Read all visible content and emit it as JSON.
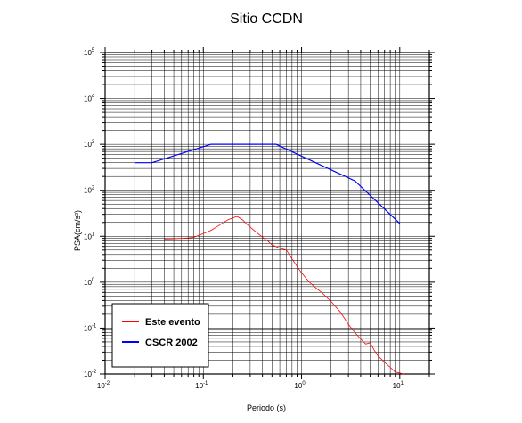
{
  "chart_data": {
    "type": "line",
    "title": "Sitio CCDN",
    "xlabel": "Periodo (s)",
    "ylabel": "PSA(cm/s²)",
    "x_scale": "log",
    "y_scale": "log",
    "xlim": [
      0.01,
      20
    ],
    "ylim": [
      0.01,
      100000
    ],
    "grid": true,
    "legend_position": "bottom-left",
    "x_ticks": [
      {
        "base": "10",
        "exp": "-2",
        "value": 0.01
      },
      {
        "base": "10",
        "exp": "-1",
        "value": 0.1
      },
      {
        "base": "10",
        "exp": "0",
        "value": 1
      },
      {
        "base": "10",
        "exp": "1",
        "value": 10
      }
    ],
    "y_ticks": [
      {
        "base": "10",
        "exp": "-2",
        "value": 0.01
      },
      {
        "base": "10",
        "exp": "-1",
        "value": 0.1
      },
      {
        "base": "10",
        "exp": "0",
        "value": 1
      },
      {
        "base": "10",
        "exp": "1",
        "value": 10
      },
      {
        "base": "10",
        "exp": "2",
        "value": 100
      },
      {
        "base": "10",
        "exp": "3",
        "value": 1000
      },
      {
        "base": "10",
        "exp": "4",
        "value": 10000
      },
      {
        "base": "10",
        "exp": "5",
        "value": 100000
      }
    ],
    "series": [
      {
        "name": "Este evento",
        "color": "#ff0000",
        "points": [
          [
            0.04,
            8.7
          ],
          [
            0.05,
            8.8
          ],
          [
            0.06,
            9.0
          ],
          [
            0.07,
            9.2
          ],
          [
            0.08,
            9.5
          ],
          [
            0.09,
            10.5
          ],
          [
            0.1,
            11.5
          ],
          [
            0.12,
            13.5
          ],
          [
            0.14,
            16.5
          ],
          [
            0.16,
            20
          ],
          [
            0.18,
            23
          ],
          [
            0.2,
            25
          ],
          [
            0.22,
            27
          ],
          [
            0.25,
            23
          ],
          [
            0.28,
            18
          ],
          [
            0.32,
            14
          ],
          [
            0.36,
            11.5
          ],
          [
            0.4,
            9.5
          ],
          [
            0.45,
            8
          ],
          [
            0.5,
            6.5
          ],
          [
            0.6,
            5.5
          ],
          [
            0.7,
            5.0
          ],
          [
            0.8,
            3.2
          ],
          [
            0.9,
            2.2
          ],
          [
            1.0,
            1.6
          ],
          [
            1.2,
            1.0
          ],
          [
            1.4,
            0.75
          ],
          [
            1.6,
            0.6
          ],
          [
            2.0,
            0.38
          ],
          [
            2.5,
            0.22
          ],
          [
            3.0,
            0.12
          ],
          [
            3.5,
            0.08
          ],
          [
            4.0,
            0.058
          ],
          [
            4.5,
            0.045
          ],
          [
            5.0,
            0.048
          ],
          [
            5.5,
            0.033
          ],
          [
            6.0,
            0.025
          ],
          [
            7.0,
            0.018
          ],
          [
            8.0,
            0.014
          ],
          [
            9.0,
            0.011
          ],
          [
            10.0,
            0.0105
          ],
          [
            11.0,
            0.0095
          ]
        ]
      },
      {
        "name": "CSCR 2002",
        "color": "#0000ff",
        "points": [
          [
            0.02,
            400
          ],
          [
            0.03,
            400
          ],
          [
            0.12,
            1000
          ],
          [
            0.55,
            1000
          ],
          [
            3.5,
            160
          ],
          [
            10.0,
            19
          ]
        ]
      }
    ]
  }
}
